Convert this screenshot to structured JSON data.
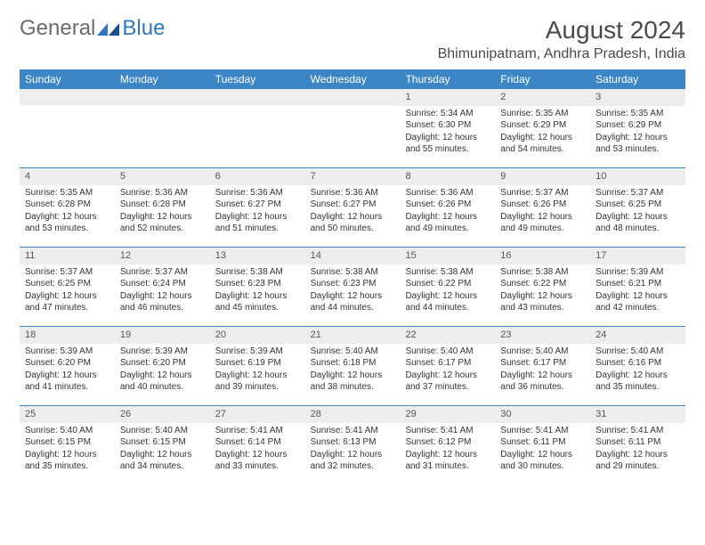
{
  "logo": {
    "text1": "General",
    "text2": "Blue"
  },
  "title": "August 2024",
  "location": "Bhimunipatnam, Andhra Pradesh, India",
  "colors": {
    "header_blue": "#3d86c6",
    "logo_blue": "#2f78bf",
    "row_divider": "#3d86c6",
    "daynum_bg": "#eceded",
    "text": "#333333"
  },
  "dow": [
    "Sunday",
    "Monday",
    "Tuesday",
    "Wednesday",
    "Thursday",
    "Friday",
    "Saturday"
  ],
  "weeks": [
    [
      null,
      null,
      null,
      null,
      {
        "n": "1",
        "sr": "Sunrise: 5:34 AM",
        "ss": "Sunset: 6:30 PM",
        "dl": "Daylight: 12 hours and 55 minutes."
      },
      {
        "n": "2",
        "sr": "Sunrise: 5:35 AM",
        "ss": "Sunset: 6:29 PM",
        "dl": "Daylight: 12 hours and 54 minutes."
      },
      {
        "n": "3",
        "sr": "Sunrise: 5:35 AM",
        "ss": "Sunset: 6:29 PM",
        "dl": "Daylight: 12 hours and 53 minutes."
      }
    ],
    [
      {
        "n": "4",
        "sr": "Sunrise: 5:35 AM",
        "ss": "Sunset: 6:28 PM",
        "dl": "Daylight: 12 hours and 53 minutes."
      },
      {
        "n": "5",
        "sr": "Sunrise: 5:36 AM",
        "ss": "Sunset: 6:28 PM",
        "dl": "Daylight: 12 hours and 52 minutes."
      },
      {
        "n": "6",
        "sr": "Sunrise: 5:36 AM",
        "ss": "Sunset: 6:27 PM",
        "dl": "Daylight: 12 hours and 51 minutes."
      },
      {
        "n": "7",
        "sr": "Sunrise: 5:36 AM",
        "ss": "Sunset: 6:27 PM",
        "dl": "Daylight: 12 hours and 50 minutes."
      },
      {
        "n": "8",
        "sr": "Sunrise: 5:36 AM",
        "ss": "Sunset: 6:26 PM",
        "dl": "Daylight: 12 hours and 49 minutes."
      },
      {
        "n": "9",
        "sr": "Sunrise: 5:37 AM",
        "ss": "Sunset: 6:26 PM",
        "dl": "Daylight: 12 hours and 49 minutes."
      },
      {
        "n": "10",
        "sr": "Sunrise: 5:37 AM",
        "ss": "Sunset: 6:25 PM",
        "dl": "Daylight: 12 hours and 48 minutes."
      }
    ],
    [
      {
        "n": "11",
        "sr": "Sunrise: 5:37 AM",
        "ss": "Sunset: 6:25 PM",
        "dl": "Daylight: 12 hours and 47 minutes."
      },
      {
        "n": "12",
        "sr": "Sunrise: 5:37 AM",
        "ss": "Sunset: 6:24 PM",
        "dl": "Daylight: 12 hours and 46 minutes."
      },
      {
        "n": "13",
        "sr": "Sunrise: 5:38 AM",
        "ss": "Sunset: 6:23 PM",
        "dl": "Daylight: 12 hours and 45 minutes."
      },
      {
        "n": "14",
        "sr": "Sunrise: 5:38 AM",
        "ss": "Sunset: 6:23 PM",
        "dl": "Daylight: 12 hours and 44 minutes."
      },
      {
        "n": "15",
        "sr": "Sunrise: 5:38 AM",
        "ss": "Sunset: 6:22 PM",
        "dl": "Daylight: 12 hours and 44 minutes."
      },
      {
        "n": "16",
        "sr": "Sunrise: 5:38 AM",
        "ss": "Sunset: 6:22 PM",
        "dl": "Daylight: 12 hours and 43 minutes."
      },
      {
        "n": "17",
        "sr": "Sunrise: 5:39 AM",
        "ss": "Sunset: 6:21 PM",
        "dl": "Daylight: 12 hours and 42 minutes."
      }
    ],
    [
      {
        "n": "18",
        "sr": "Sunrise: 5:39 AM",
        "ss": "Sunset: 6:20 PM",
        "dl": "Daylight: 12 hours and 41 minutes."
      },
      {
        "n": "19",
        "sr": "Sunrise: 5:39 AM",
        "ss": "Sunset: 6:20 PM",
        "dl": "Daylight: 12 hours and 40 minutes."
      },
      {
        "n": "20",
        "sr": "Sunrise: 5:39 AM",
        "ss": "Sunset: 6:19 PM",
        "dl": "Daylight: 12 hours and 39 minutes."
      },
      {
        "n": "21",
        "sr": "Sunrise: 5:40 AM",
        "ss": "Sunset: 6:18 PM",
        "dl": "Daylight: 12 hours and 38 minutes."
      },
      {
        "n": "22",
        "sr": "Sunrise: 5:40 AM",
        "ss": "Sunset: 6:17 PM",
        "dl": "Daylight: 12 hours and 37 minutes."
      },
      {
        "n": "23",
        "sr": "Sunrise: 5:40 AM",
        "ss": "Sunset: 6:17 PM",
        "dl": "Daylight: 12 hours and 36 minutes."
      },
      {
        "n": "24",
        "sr": "Sunrise: 5:40 AM",
        "ss": "Sunset: 6:16 PM",
        "dl": "Daylight: 12 hours and 35 minutes."
      }
    ],
    [
      {
        "n": "25",
        "sr": "Sunrise: 5:40 AM",
        "ss": "Sunset: 6:15 PM",
        "dl": "Daylight: 12 hours and 35 minutes."
      },
      {
        "n": "26",
        "sr": "Sunrise: 5:40 AM",
        "ss": "Sunset: 6:15 PM",
        "dl": "Daylight: 12 hours and 34 minutes."
      },
      {
        "n": "27",
        "sr": "Sunrise: 5:41 AM",
        "ss": "Sunset: 6:14 PM",
        "dl": "Daylight: 12 hours and 33 minutes."
      },
      {
        "n": "28",
        "sr": "Sunrise: 5:41 AM",
        "ss": "Sunset: 6:13 PM",
        "dl": "Daylight: 12 hours and 32 minutes."
      },
      {
        "n": "29",
        "sr": "Sunrise: 5:41 AM",
        "ss": "Sunset: 6:12 PM",
        "dl": "Daylight: 12 hours and 31 minutes."
      },
      {
        "n": "30",
        "sr": "Sunrise: 5:41 AM",
        "ss": "Sunset: 6:11 PM",
        "dl": "Daylight: 12 hours and 30 minutes."
      },
      {
        "n": "31",
        "sr": "Sunrise: 5:41 AM",
        "ss": "Sunset: 6:11 PM",
        "dl": "Daylight: 12 hours and 29 minutes."
      }
    ]
  ]
}
